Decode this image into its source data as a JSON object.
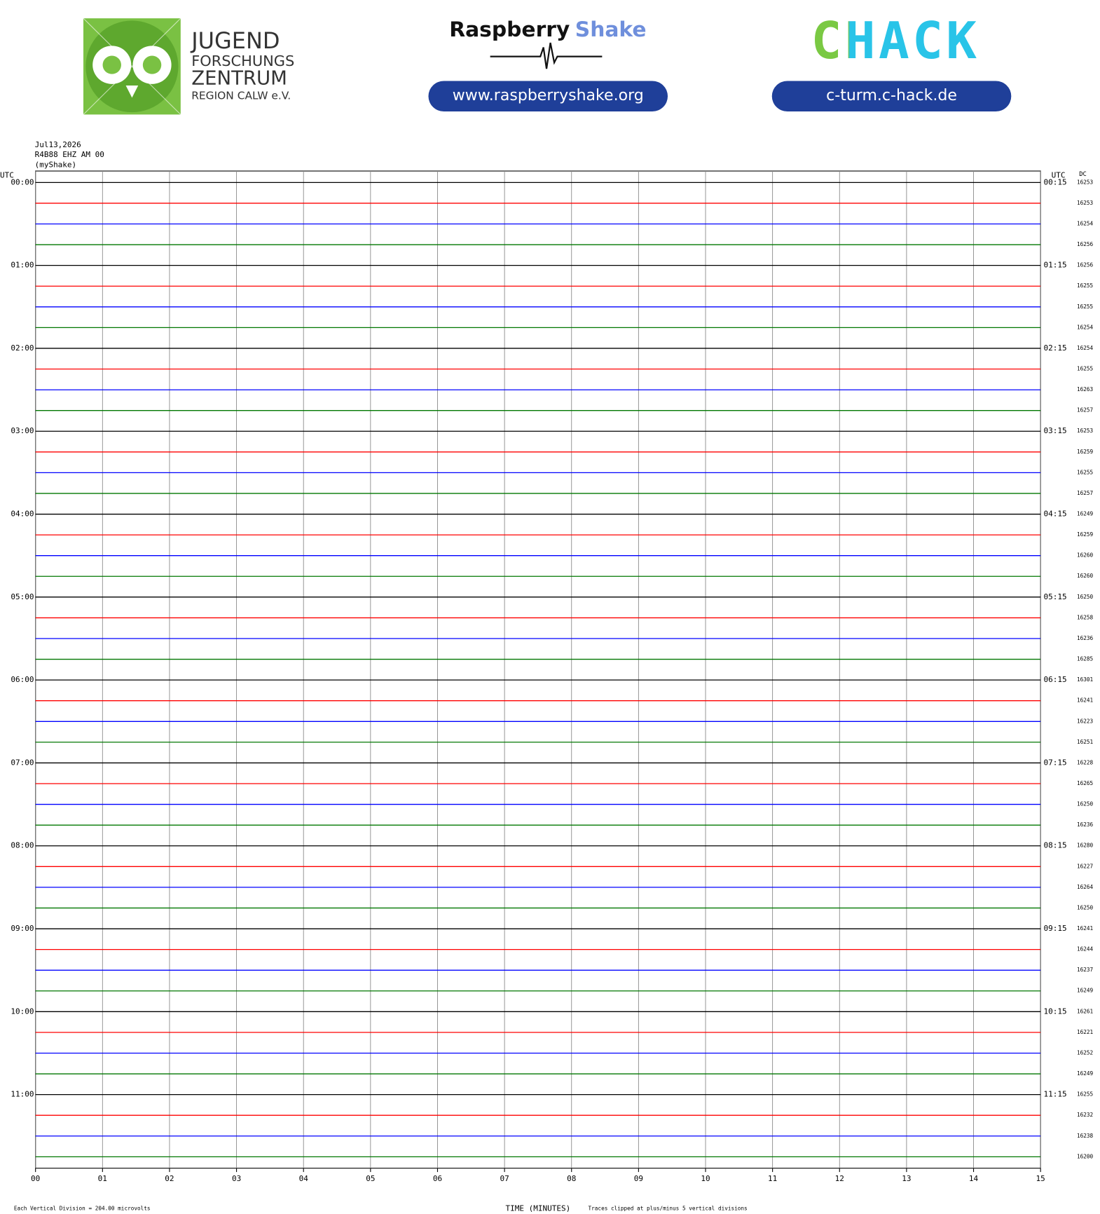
{
  "header": {
    "jfz": [
      "JUGEND",
      "FORSCHUNGS",
      "ZENTRUM",
      "REGION CALW e.V."
    ],
    "rs_brand": "Raspberry",
    "rs_product": "Shake",
    "rs_url": "www.raspberryshake.org",
    "chack": "CHACK",
    "chack_url": "c-turm.c-hack.de"
  },
  "chart_data": {
    "type": "helicorder",
    "date": "Jul13,2026",
    "station": "R4B88 EHZ AM 00",
    "source": "(myShake)",
    "left_axis_title": "UTC",
    "right_axis_title": "UTC",
    "dc_title": "DC",
    "colors": [
      "#000000",
      "#ff0000",
      "#0000ff",
      "#007700"
    ],
    "left_labels": [
      "00:00",
      "01:00",
      "02:00",
      "03:00",
      "04:00",
      "05:00",
      "06:00",
      "07:00",
      "08:00",
      "09:00",
      "10:00",
      "11:00"
    ],
    "right_labels": [
      "00:15",
      "01:15",
      "02:15",
      "03:15",
      "04:15",
      "05:15",
      "06:15",
      "07:15",
      "08:15",
      "09:15",
      "10:15",
      "11:15"
    ],
    "dc": [
      16253,
      16253,
      16254,
      16256,
      16256,
      16255,
      16255,
      16254,
      16254,
      16255,
      16263,
      16257,
      16253,
      16259,
      16255,
      16257,
      16249,
      16259,
      16260,
      16260,
      16250,
      16258,
      16236,
      16285,
      16301,
      16241,
      16223,
      16251,
      16228,
      16265,
      16250,
      16236,
      16280,
      16227,
      16264,
      16250,
      16241,
      16244,
      16237,
      16249,
      16261,
      16221,
      16252,
      16249,
      16255,
      16232,
      16238,
      16200
    ],
    "xlim": [
      0,
      15
    ],
    "xticks": [
      {
        "value": 0,
        "label": "00"
      },
      {
        "value": 1,
        "label": "01"
      },
      {
        "value": 2,
        "label": "02"
      },
      {
        "value": 3,
        "label": "03"
      },
      {
        "value": 4,
        "label": "04"
      },
      {
        "value": 5,
        "label": "05"
      },
      {
        "value": 6,
        "label": "06"
      },
      {
        "value": 7,
        "label": "07"
      },
      {
        "value": 8,
        "label": "08"
      },
      {
        "value": 9,
        "label": "09"
      },
      {
        "value": 10,
        "label": "10"
      },
      {
        "value": 11,
        "label": "11"
      },
      {
        "value": 12,
        "label": "12"
      },
      {
        "value": 13,
        "label": "13"
      },
      {
        "value": 14,
        "label": "14"
      },
      {
        "value": 15,
        "label": "15"
      }
    ],
    "xlabel": "TIME (MINUTES)",
    "scale_note": "Each Vertical Division =  204.00 microvolts",
    "clip_note": "Traces clipped at plus/minus 5 vertical divisions"
  }
}
